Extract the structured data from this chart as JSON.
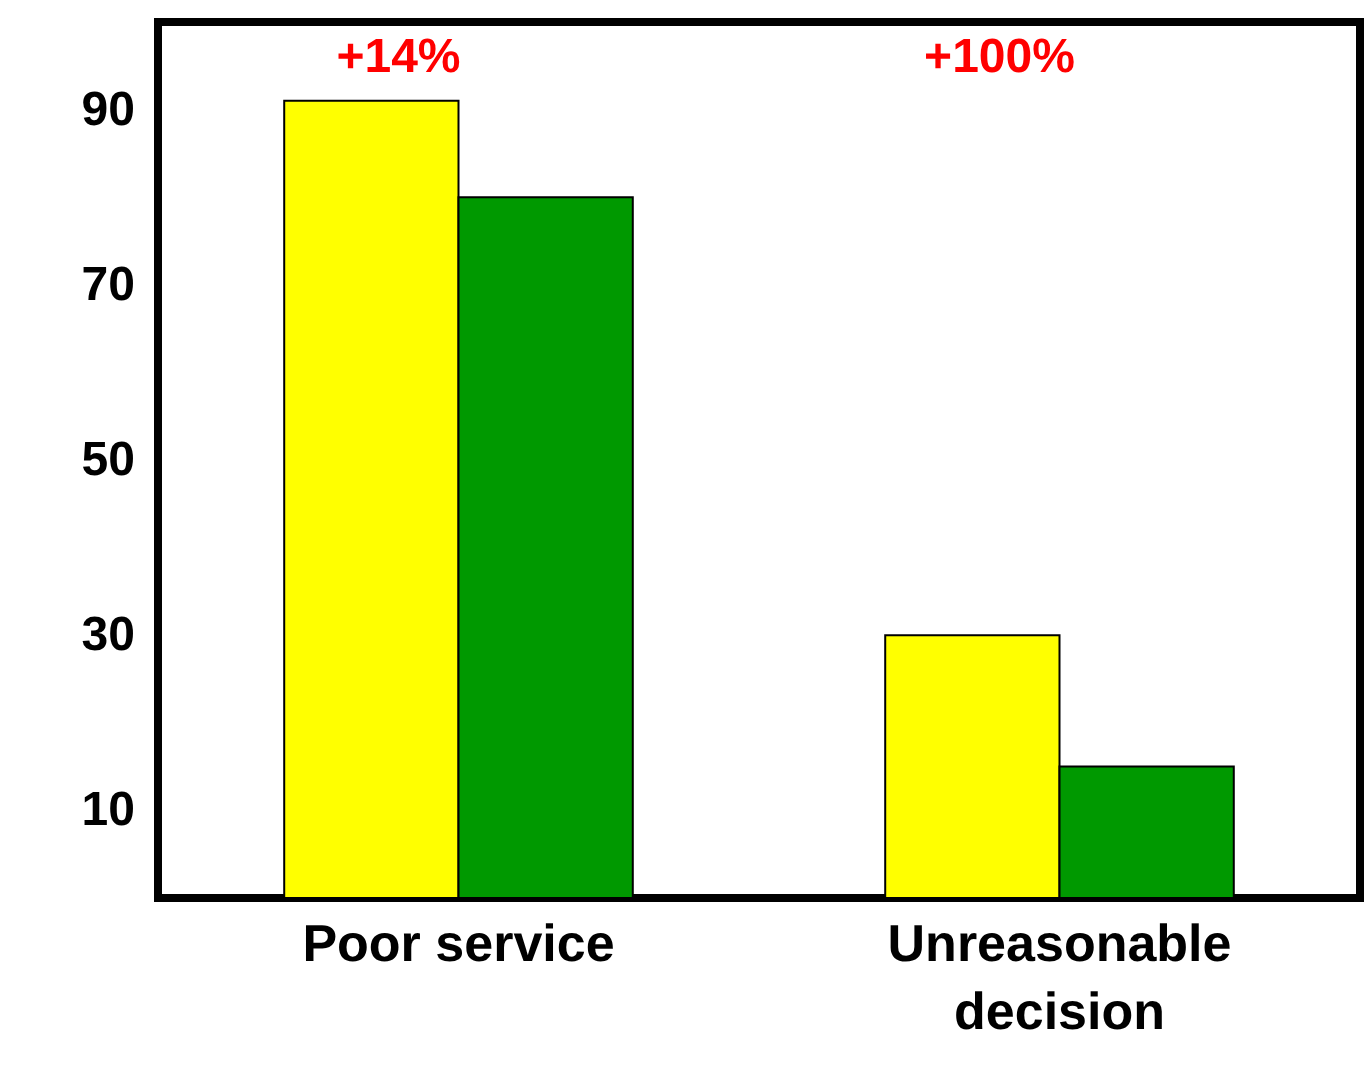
{
  "chart_data": {
    "type": "bar",
    "categories": [
      "Poor service",
      "Unreasonable decision"
    ],
    "series": [
      {
        "color": "#ffff00",
        "values": [
          91,
          30
        ]
      },
      {
        "color": "#009900",
        "values": [
          80,
          15
        ]
      }
    ],
    "ylim": [
      0,
      100
    ],
    "yticks": [
      10,
      30,
      50,
      70,
      90
    ],
    "grid": false,
    "annotations": [
      "+14%",
      "+100%"
    ]
  }
}
